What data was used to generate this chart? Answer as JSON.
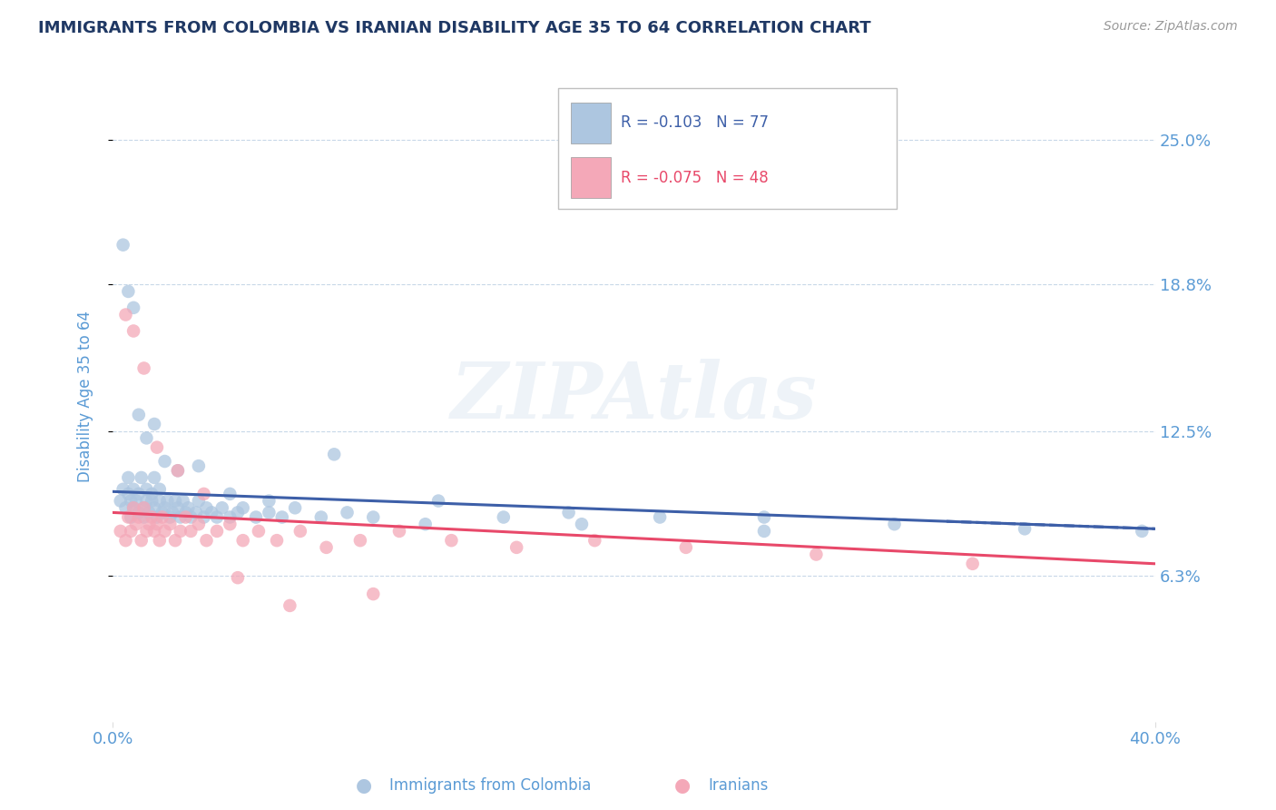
{
  "title": "IMMIGRANTS FROM COLOMBIA VS IRANIAN DISABILITY AGE 35 TO 64 CORRELATION CHART",
  "source_text": "Source: ZipAtlas.com",
  "ylabel": "Disability Age 35 to 64",
  "xlim": [
    0.0,
    0.4
  ],
  "ylim": [
    0.0,
    0.28
  ],
  "yticks": [
    0.063,
    0.125,
    0.188,
    0.25
  ],
  "ytick_labels": [
    "6.3%",
    "12.5%",
    "18.8%",
    "25.0%"
  ],
  "colombia_R": -0.103,
  "colombia_N": 77,
  "iran_R": -0.075,
  "iran_N": 48,
  "colombia_color": "#adc6e0",
  "iran_color": "#f4a8b8",
  "colombia_line_color": "#3d5fa8",
  "iran_line_color": "#e8496a",
  "legend_label_colombia": "Immigrants from Colombia",
  "legend_label_iran": "Iranians",
  "watermark_text": "ZIPAtlas",
  "background_color": "#ffffff",
  "title_color": "#1f3864",
  "axis_label_color": "#5b9bd5",
  "source_color": "#999999",
  "grid_color": "#c8d8e8",
  "colombia_points_x": [
    0.003,
    0.004,
    0.005,
    0.006,
    0.006,
    0.007,
    0.007,
    0.008,
    0.008,
    0.009,
    0.01,
    0.01,
    0.011,
    0.012,
    0.012,
    0.013,
    0.013,
    0.014,
    0.015,
    0.015,
    0.016,
    0.016,
    0.017,
    0.018,
    0.018,
    0.019,
    0.02,
    0.021,
    0.022,
    0.023,
    0.024,
    0.025,
    0.026,
    0.027,
    0.028,
    0.029,
    0.03,
    0.032,
    0.033,
    0.035,
    0.036,
    0.038,
    0.04,
    0.042,
    0.045,
    0.048,
    0.05,
    0.055,
    0.06,
    0.065,
    0.07,
    0.08,
    0.09,
    0.1,
    0.12,
    0.15,
    0.18,
    0.21,
    0.25,
    0.3,
    0.35,
    0.395,
    0.004,
    0.006,
    0.008,
    0.01,
    0.013,
    0.016,
    0.02,
    0.025,
    0.033,
    0.045,
    0.06,
    0.085,
    0.125,
    0.175,
    0.25
  ],
  "colombia_points_y": [
    0.095,
    0.1,
    0.092,
    0.105,
    0.098,
    0.088,
    0.095,
    0.092,
    0.1,
    0.095,
    0.09,
    0.098,
    0.105,
    0.092,
    0.088,
    0.095,
    0.1,
    0.09,
    0.095,
    0.098,
    0.092,
    0.105,
    0.088,
    0.095,
    0.1,
    0.09,
    0.092,
    0.095,
    0.088,
    0.09,
    0.095,
    0.092,
    0.088,
    0.095,
    0.09,
    0.092,
    0.088,
    0.09,
    0.095,
    0.088,
    0.092,
    0.09,
    0.088,
    0.092,
    0.088,
    0.09,
    0.092,
    0.088,
    0.09,
    0.088,
    0.092,
    0.088,
    0.09,
    0.088,
    0.085,
    0.088,
    0.085,
    0.088,
    0.082,
    0.085,
    0.083,
    0.082,
    0.205,
    0.185,
    0.178,
    0.132,
    0.122,
    0.128,
    0.112,
    0.108,
    0.11,
    0.098,
    0.095,
    0.115,
    0.095,
    0.09,
    0.088
  ],
  "iran_points_x": [
    0.003,
    0.005,
    0.006,
    0.007,
    0.008,
    0.009,
    0.01,
    0.011,
    0.012,
    0.013,
    0.014,
    0.015,
    0.016,
    0.017,
    0.018,
    0.019,
    0.02,
    0.022,
    0.024,
    0.026,
    0.028,
    0.03,
    0.033,
    0.036,
    0.04,
    0.045,
    0.05,
    0.056,
    0.063,
    0.072,
    0.082,
    0.095,
    0.11,
    0.13,
    0.155,
    0.185,
    0.22,
    0.27,
    0.33,
    0.005,
    0.008,
    0.012,
    0.017,
    0.025,
    0.035,
    0.048,
    0.068,
    0.1
  ],
  "iran_points_y": [
    0.082,
    0.078,
    0.088,
    0.082,
    0.092,
    0.085,
    0.088,
    0.078,
    0.092,
    0.082,
    0.085,
    0.088,
    0.082,
    0.085,
    0.078,
    0.088,
    0.082,
    0.085,
    0.078,
    0.082,
    0.088,
    0.082,
    0.085,
    0.078,
    0.082,
    0.085,
    0.078,
    0.082,
    0.078,
    0.082,
    0.075,
    0.078,
    0.082,
    0.078,
    0.075,
    0.078,
    0.075,
    0.072,
    0.068,
    0.175,
    0.168,
    0.152,
    0.118,
    0.108,
    0.098,
    0.062,
    0.05,
    0.055
  ],
  "colombia_trend_x": [
    0.0,
    0.4
  ],
  "colombia_trend_y": [
    0.099,
    0.083
  ],
  "iran_trend_x": [
    0.0,
    0.4
  ],
  "iran_trend_y": [
    0.09,
    0.068
  ]
}
